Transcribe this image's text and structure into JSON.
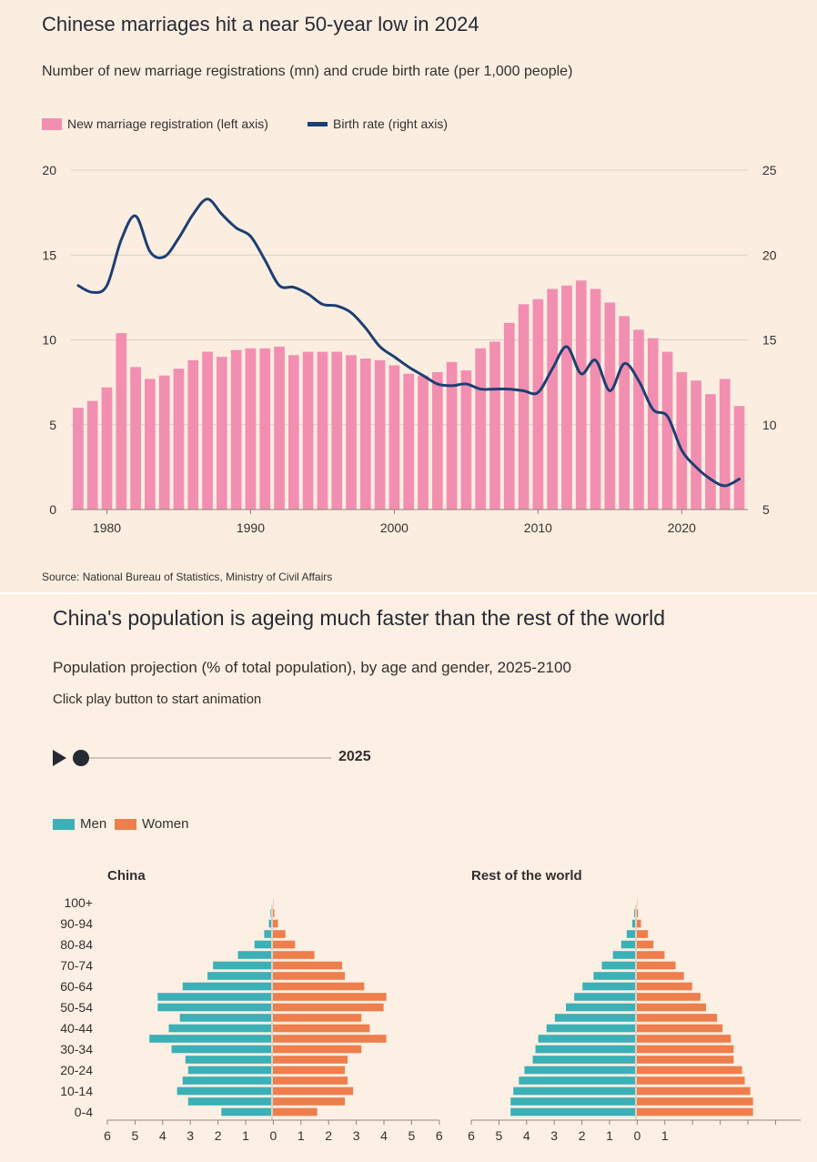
{
  "chart1": {
    "title": "Chinese marriages hit a near 50-year low in 2024",
    "subtitle": "Number of new marriage registrations (mn) and crude birth rate (per 1,000 people)",
    "legend": {
      "marriage": "New marriage registration (left axis)",
      "birth": "Birth rate (right axis)"
    },
    "source": "Source: National Bureau of Statistics, Ministry of Civil Affairs"
  },
  "chart2": {
    "title": "China's population is ageing much faster than the rest of the world",
    "subtitle": "Population projection (% of total population), by age and gender, 2025-2100",
    "instruction": "Click play button to start animation",
    "year": "2025",
    "legend": {
      "men": "Men",
      "women": "Women"
    },
    "china_title": "China",
    "rest_title": "Rest of the world"
  },
  "colors": {
    "marriage": "#f28fb1",
    "birth": "#1d3f73",
    "men": "#3bb0b6",
    "women": "#ee7e4c",
    "grid": "#d8cfc5",
    "text": "#33302e"
  },
  "chart_data": [
    {
      "type": "bar+line",
      "title": "Chinese marriages hit a near 50-year low in 2024",
      "x": [
        1978,
        1979,
        1980,
        1981,
        1982,
        1983,
        1984,
        1985,
        1986,
        1987,
        1988,
        1989,
        1990,
        1991,
        1992,
        1993,
        1994,
        1995,
        1996,
        1997,
        1998,
        1999,
        2000,
        2001,
        2002,
        2003,
        2004,
        2005,
        2006,
        2007,
        2008,
        2009,
        2010,
        2011,
        2012,
        2013,
        2014,
        2015,
        2016,
        2017,
        2018,
        2019,
        2020,
        2021,
        2022,
        2023,
        2024
      ],
      "x_ticks": [
        1980,
        1990,
        2000,
        2010,
        2020
      ],
      "x_range": [
        1977.5,
        2024.6
      ],
      "series": [
        {
          "name": "New marriage registration (left axis)",
          "axis": "left",
          "kind": "bar",
          "values": [
            6.0,
            6.4,
            7.2,
            10.4,
            8.4,
            7.7,
            7.9,
            8.3,
            8.8,
            9.3,
            9.0,
            9.4,
            9.5,
            9.5,
            9.6,
            9.1,
            9.3,
            9.3,
            9.3,
            9.1,
            8.9,
            8.8,
            8.5,
            8.0,
            7.9,
            8.1,
            8.7,
            8.2,
            9.5,
            9.9,
            11.0,
            12.1,
            12.4,
            13.0,
            13.2,
            13.5,
            13.0,
            12.2,
            11.4,
            10.6,
            10.1,
            9.3,
            8.1,
            7.6,
            6.8,
            7.7,
            6.1
          ]
        },
        {
          "name": "Birth rate (right axis)",
          "axis": "right",
          "kind": "line",
          "values": [
            18.2,
            17.8,
            18.2,
            20.9,
            22.3,
            20.2,
            19.9,
            21.0,
            22.4,
            23.3,
            22.4,
            21.6,
            21.1,
            19.7,
            18.2,
            18.1,
            17.7,
            17.1,
            17.0,
            16.6,
            15.7,
            14.6,
            14.0,
            13.4,
            12.9,
            12.4,
            12.3,
            12.4,
            12.1,
            12.1,
            12.1,
            12.0,
            11.9,
            13.3,
            14.6,
            13.0,
            13.8,
            12.0,
            13.6,
            12.6,
            10.9,
            10.5,
            8.5,
            7.5,
            6.8,
            6.4,
            6.8
          ]
        }
      ],
      "y_left": {
        "range": [
          0,
          20
        ],
        "ticks": [
          0,
          5,
          10,
          15,
          20
        ]
      },
      "y_right": {
        "range": [
          5,
          25
        ],
        "ticks": [
          5,
          10,
          15,
          20,
          25
        ]
      }
    },
    {
      "type": "bar",
      "subtype": "population-pyramid",
      "title": "China",
      "year": "2025",
      "age_groups": [
        "0-4",
        "5-9",
        "10-14",
        "15-19",
        "20-24",
        "25-29",
        "30-34",
        "35-39",
        "40-44",
        "45-49",
        "50-54",
        "55-59",
        "60-64",
        "65-69",
        "70-74",
        "75-79",
        "80-84",
        "85-89",
        "90-94",
        "95-99",
        "100+"
      ],
      "age_labels_shown": [
        "0-4",
        "10-14",
        "20-24",
        "30-34",
        "40-44",
        "50-54",
        "60-64",
        "70-74",
        "80-84",
        "90-94",
        "100+"
      ],
      "x_ticks": [
        "6",
        "5",
        "4",
        "3",
        "2",
        "1",
        "0",
        "1",
        "2",
        "3",
        "4",
        "5",
        "6"
      ],
      "series": [
        {
          "name": "Men",
          "values": [
            1.8,
            3.0,
            3.4,
            3.2,
            3.0,
            3.1,
            3.6,
            4.4,
            3.7,
            3.3,
            4.1,
            4.1,
            3.2,
            2.3,
            2.1,
            1.2,
            0.6,
            0.25,
            0.08,
            0.02,
            0.0
          ]
        },
        {
          "name": "Women",
          "values": [
            1.6,
            2.6,
            2.9,
            2.7,
            2.6,
            2.7,
            3.2,
            4.1,
            3.5,
            3.2,
            4.0,
            4.1,
            3.3,
            2.6,
            2.5,
            1.5,
            0.8,
            0.45,
            0.18,
            0.05,
            0.01
          ]
        }
      ]
    },
    {
      "type": "bar",
      "subtype": "population-pyramid",
      "title": "Rest of the world",
      "year": "2025",
      "age_groups": [
        "0-4",
        "5-9",
        "10-14",
        "15-19",
        "20-24",
        "25-29",
        "30-34",
        "35-39",
        "40-44",
        "45-49",
        "50-54",
        "55-59",
        "60-64",
        "65-69",
        "70-74",
        "75-79",
        "80-84",
        "85-89",
        "90-94",
        "95-99",
        "100+"
      ],
      "x_ticks": [
        "6",
        "5",
        "4",
        "3",
        "2",
        "1",
        "0",
        "1"
      ],
      "series": [
        {
          "name": "Men",
          "values": [
            4.5,
            4.5,
            4.4,
            4.2,
            4.0,
            3.7,
            3.6,
            3.5,
            3.2,
            2.9,
            2.5,
            2.2,
            1.9,
            1.5,
            1.2,
            0.8,
            0.5,
            0.3,
            0.1,
            0.03,
            0.0
          ]
        },
        {
          "name": "Women",
          "values": [
            4.2,
            4.2,
            4.1,
            3.9,
            3.8,
            3.5,
            3.5,
            3.4,
            3.1,
            2.9,
            2.5,
            2.3,
            2.0,
            1.7,
            1.4,
            1.0,
            0.6,
            0.4,
            0.15,
            0.04,
            0.01
          ]
        }
      ]
    }
  ]
}
